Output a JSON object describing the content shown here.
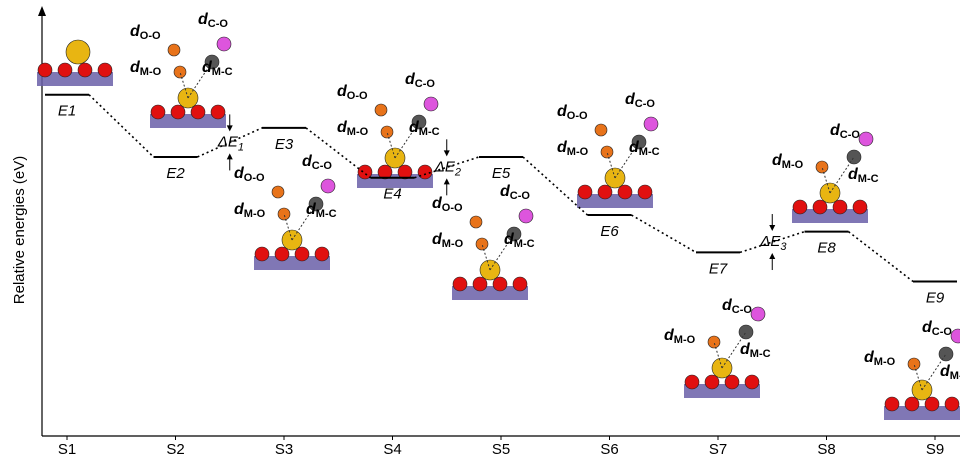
{
  "chart_data": {
    "type": "energy-profile",
    "y_label": "Relative energies (eV)",
    "categories": [
      "S1",
      "S2",
      "S3",
      "S4",
      "S5",
      "S6",
      "S7",
      "S8",
      "S9"
    ],
    "level_labels": [
      "E1",
      "E2",
      "E3",
      "E4",
      "E5",
      "E6",
      "E7",
      "E8",
      "E9"
    ],
    "values": [
      8.2,
      6.7,
      7.4,
      6.2,
      6.7,
      5.3,
      4.4,
      4.9,
      3.7
    ],
    "ylim": [
      0,
      10
    ],
    "barriers": [
      {
        "symbol": "ΔE",
        "index": "1"
      },
      {
        "symbol": "ΔE",
        "index": "2"
      },
      {
        "symbol": "ΔE",
        "index": "3"
      }
    ],
    "distance_symbol": "d",
    "structure_labels": [
      [
        "O-O",
        "C-O",
        "M-O",
        "M-C"
      ],
      [
        "O-O",
        "C-O",
        "M-O",
        "M-C"
      ],
      [
        "O-O",
        "C-O",
        "M-O",
        "M-C"
      ],
      [
        "O-O",
        "C-O",
        "M-O",
        "M-C"
      ],
      [
        "O-O",
        "C-O",
        "M-O",
        "M-C"
      ],
      [
        "C-O",
        "M-O",
        "M-C"
      ],
      [
        "C-O",
        "M-O",
        "M-C"
      ],
      [
        "C-O",
        "M-O",
        "M-C"
      ]
    ]
  }
}
